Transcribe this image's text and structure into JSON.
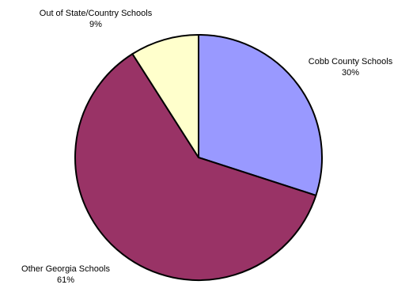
{
  "chart_data": {
    "type": "pie",
    "slices": [
      {
        "label": "Cobb County Schools",
        "value": 30,
        "display": "30%",
        "color": "#9999ff"
      },
      {
        "label": "Other Georgia Schools",
        "value": 61,
        "display": "61%",
        "color": "#993366"
      },
      {
        "label": "Out of State/Country Schools",
        "value": 9,
        "display": "9%",
        "color": "#ffffcc"
      }
    ],
    "start": "12 o'clock",
    "direction": "clockwise",
    "outline_color": "#000000",
    "legend": "none",
    "title": ""
  }
}
